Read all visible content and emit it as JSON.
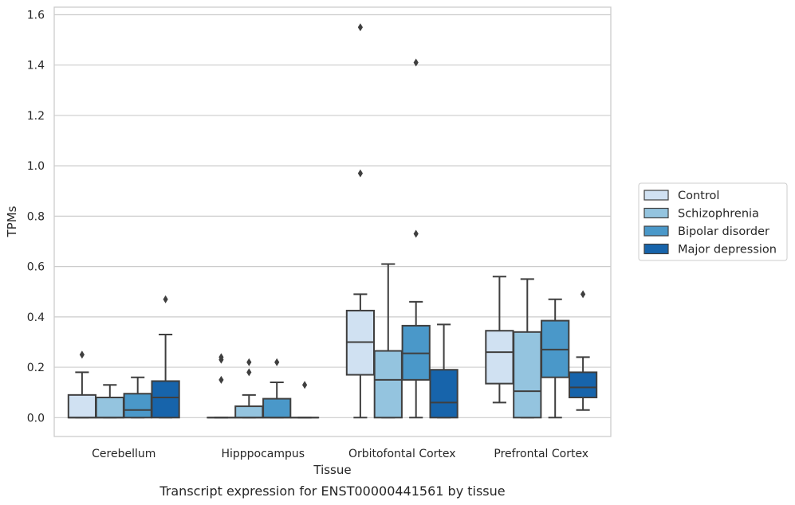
{
  "chart_data": {
    "type": "box",
    "caption": "Transcript expression for ENST00000441561 by tissue",
    "xlabel": "Tissue",
    "ylabel": "TPMs",
    "ylim": [
      -0.075,
      1.63
    ],
    "yticks": [
      "0.0",
      "0.2",
      "0.4",
      "0.6",
      "0.8",
      "1.0",
      "1.2",
      "1.4",
      "1.6"
    ],
    "grid": "horizontal",
    "legend_position": "right",
    "categories": [
      "Cerebellum",
      "Hipppocampus",
      "Orbitofontal Cortex",
      "Prefrontal Cortex"
    ],
    "series": [
      {
        "name": "Control",
        "color": "#d0e1f2",
        "boxes": [
          {
            "whislo": 0.0,
            "q1": 0.0,
            "med": 0.0,
            "q3": 0.09,
            "whishi": 0.18,
            "fliers": [
              0.25
            ]
          },
          {
            "whislo": 0.0,
            "q1": 0.0,
            "med": 0.0,
            "q3": 0.0,
            "whishi": 0.0,
            "fliers": [
              0.15,
              0.23,
              0.24
            ]
          },
          {
            "whislo": 0.0,
            "q1": 0.17,
            "med": 0.3,
            "q3": 0.425,
            "whishi": 0.49,
            "fliers": [
              0.97,
              1.55
            ]
          },
          {
            "whislo": 0.06,
            "q1": 0.135,
            "med": 0.26,
            "q3": 0.345,
            "whishi": 0.56,
            "fliers": []
          }
        ]
      },
      {
        "name": "Schizophrenia",
        "color": "#94c4df",
        "boxes": [
          {
            "whislo": 0.0,
            "q1": 0.0,
            "med": 0.0,
            "q3": 0.08,
            "whishi": 0.13,
            "fliers": []
          },
          {
            "whislo": 0.0,
            "q1": 0.0,
            "med": 0.0,
            "q3": 0.045,
            "whishi": 0.09,
            "fliers": [
              0.18,
              0.22
            ]
          },
          {
            "whislo": 0.0,
            "q1": 0.0,
            "med": 0.15,
            "q3": 0.265,
            "whishi": 0.61,
            "fliers": []
          },
          {
            "whislo": 0.0,
            "q1": 0.0,
            "med": 0.105,
            "q3": 0.34,
            "whishi": 0.55,
            "fliers": []
          }
        ]
      },
      {
        "name": "Bipolar disorder",
        "color": "#4a98c9",
        "boxes": [
          {
            "whislo": 0.0,
            "q1": 0.0,
            "med": 0.03,
            "q3": 0.095,
            "whishi": 0.16,
            "fliers": []
          },
          {
            "whislo": 0.0,
            "q1": 0.0,
            "med": 0.0,
            "q3": 0.075,
            "whishi": 0.14,
            "fliers": [
              0.22
            ]
          },
          {
            "whislo": 0.0,
            "q1": 0.15,
            "med": 0.255,
            "q3": 0.365,
            "whishi": 0.46,
            "fliers": [
              0.73,
              1.41
            ]
          },
          {
            "whislo": 0.0,
            "q1": 0.16,
            "med": 0.27,
            "q3": 0.385,
            "whishi": 0.47,
            "fliers": []
          }
        ]
      },
      {
        "name": "Major depression",
        "color": "#1764ab",
        "boxes": [
          {
            "whislo": 0.0,
            "q1": 0.0,
            "med": 0.08,
            "q3": 0.145,
            "whishi": 0.33,
            "fliers": [
              0.47
            ]
          },
          {
            "whislo": 0.0,
            "q1": 0.0,
            "med": 0.0,
            "q3": 0.0,
            "whishi": 0.0,
            "fliers": [
              0.13
            ]
          },
          {
            "whislo": 0.0,
            "q1": 0.0,
            "med": 0.06,
            "q3": 0.19,
            "whishi": 0.37,
            "fliers": []
          },
          {
            "whislo": 0.03,
            "q1": 0.08,
            "med": 0.12,
            "q3": 0.18,
            "whishi": 0.24,
            "fliers": [
              0.49
            ]
          }
        ]
      }
    ]
  }
}
